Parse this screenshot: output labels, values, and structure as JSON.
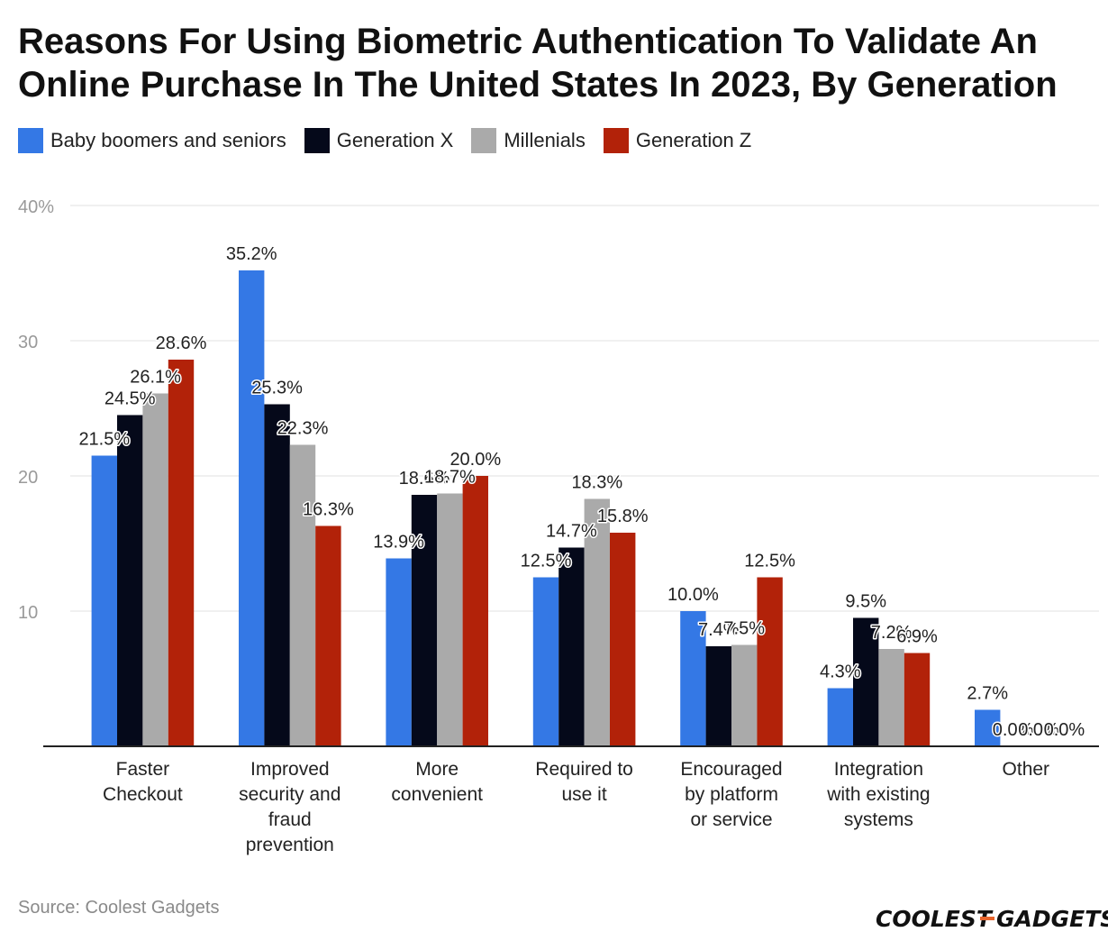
{
  "chart_data": {
    "type": "bar",
    "title": "Reasons For Using Biometric Authentication To Validate An Online Purchase In The United States In 2023, By Generation",
    "xlabel": "",
    "ylabel": "",
    "ylim": [
      0,
      40
    ],
    "yticks": [
      "",
      "10",
      "20",
      "30",
      "40%"
    ],
    "grid": true,
    "legend_position": "top-left",
    "categories": [
      [
        "Faster",
        "Checkout"
      ],
      [
        "Improved",
        "security and",
        "fraud",
        "prevention"
      ],
      [
        "More",
        "convenient"
      ],
      [
        "Required to",
        "use it"
      ],
      [
        "Encouraged",
        "by platform",
        "or service"
      ],
      [
        "Integration",
        "with existing",
        "systems"
      ],
      [
        "Other"
      ]
    ],
    "series": [
      {
        "name": "Baby boomers and seniors",
        "color": "#3478e5",
        "values": [
          21.5,
          35.2,
          13.9,
          12.5,
          10.0,
          4.3,
          2.7
        ],
        "labels": [
          "21.5%",
          "35.2%",
          "13.9%",
          "12.5%",
          "10.0%",
          "4.3%",
          "2.7%"
        ]
      },
      {
        "name": "Generation X",
        "color": "#05091a",
        "values": [
          24.5,
          25.3,
          18.6,
          14.7,
          7.4,
          9.5,
          0.0
        ],
        "labels": [
          "24.5%",
          "25.3%",
          "18.6%",
          "14.7%",
          "7.4%",
          "9.5%",
          "0.0%"
        ]
      },
      {
        "name": "Millenials",
        "color": "#aaaaaa",
        "values": [
          26.1,
          22.3,
          18.7,
          18.3,
          7.5,
          7.2,
          0.0
        ],
        "labels": [
          "26.1%",
          "22.3%",
          "18.7%",
          "18.3%",
          "7.5%",
          "7.2%",
          "0.0%"
        ]
      },
      {
        "name": "Generation Z",
        "color": "#b22209",
        "values": [
          28.6,
          16.3,
          20.0,
          15.8,
          12.5,
          6.9,
          0.0
        ],
        "labels": [
          "28.6%",
          "16.3%",
          "20.0%",
          "15.8%",
          "12.5%",
          "6.9%",
          "0.0%"
        ]
      }
    ]
  },
  "source": "Source: Coolest Gadgets",
  "logo": {
    "left": "COOLEST",
    "right": "GADGETS",
    "accent_color": "#e8642b"
  }
}
